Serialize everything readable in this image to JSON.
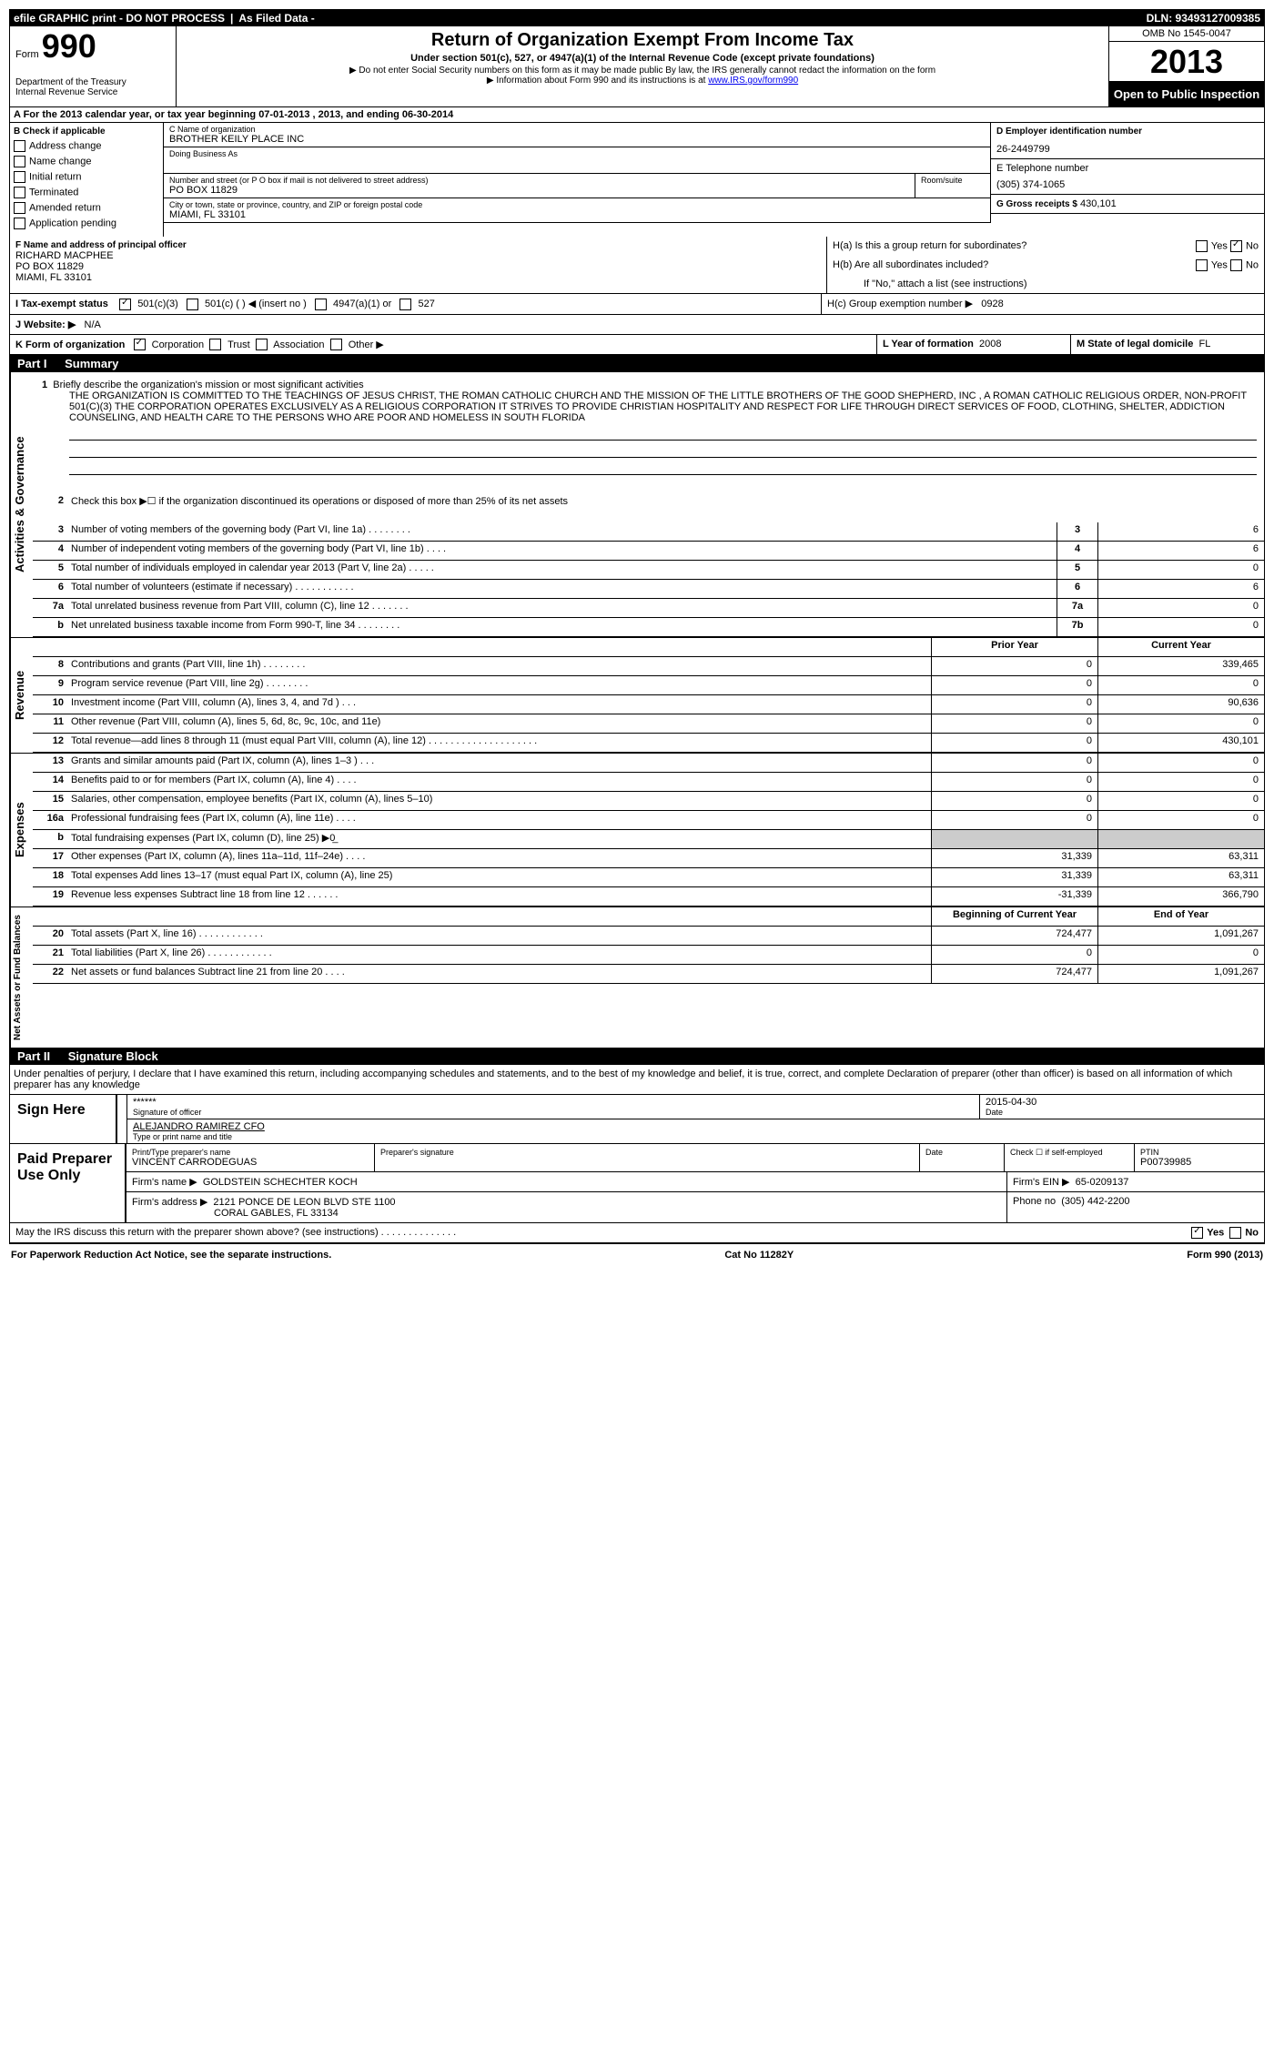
{
  "header_bar": {
    "left": "efile GRAPHIC print - DO NOT PROCESS",
    "mid": "As Filed Data -",
    "right": "DLN: 93493127009385"
  },
  "form": {
    "prefix": "Form",
    "number": "990",
    "dept1": "Department of the Treasury",
    "dept2": "Internal Revenue Service"
  },
  "title": {
    "main": "Return of Organization Exempt From Income Tax",
    "sub1": "Under section 501(c), 527, or 4947(a)(1) of the Internal Revenue Code (except private foundations)",
    "sub2": "▶ Do not enter Social Security numbers on this form as it may be made public  By law, the IRS generally cannot redact the information on the form",
    "sub3": "▶ Information about Form 990 and its instructions is at ",
    "link": "www.IRS.gov/form990"
  },
  "right": {
    "omb": "OMB No  1545-0047",
    "year": "2013",
    "open": "Open to Public Inspection"
  },
  "section_a": "A  For the 2013 calendar year, or tax year beginning 07-01-2013     , 2013, and ending 06-30-2014",
  "check_b": {
    "header": "B  Check if applicable",
    "items": [
      "Address change",
      "Name change",
      "Initial return",
      "Terminated",
      "Amended return",
      "Application pending"
    ]
  },
  "org": {
    "name_label": "C Name of organization",
    "name": "BROTHER KEILY PLACE INC",
    "dba_label": "Doing Business As",
    "addr_label": "Number and street (or P O  box if mail is not delivered to street address)",
    "room_label": "Room/suite",
    "addr": "PO BOX 11829",
    "city_label": "City or town, state or province, country, and ZIP or foreign postal code",
    "city": "MIAMI, FL  33101"
  },
  "d": {
    "label": "D Employer identification number",
    "value": "26-2449799"
  },
  "e": {
    "label": "E Telephone number",
    "value": "(305) 374-1065"
  },
  "g": {
    "label": "G Gross receipts $",
    "value": "430,101"
  },
  "f": {
    "label": "F   Name and address of principal officer",
    "name": "RICHARD MACPHEE",
    "addr1": "PO BOX 11829",
    "addr2": "MIAMI, FL  33101"
  },
  "h": {
    "a": "H(a)  Is this a group return for subordinates?",
    "b": "H(b)  Are all subordinates included?",
    "note": "If \"No,\" attach a list  (see instructions)",
    "c": "H(c)   Group exemption number ▶",
    "c_val": "0928",
    "yes": "Yes",
    "no": "No"
  },
  "i": {
    "label": "I   Tax-exempt status",
    "opt1": "501(c)(3)",
    "opt2": "501(c) (   ) ◀ (insert no )",
    "opt3": "4947(a)(1) or",
    "opt4": "527"
  },
  "j": {
    "label": "J   Website: ▶",
    "value": "N/A"
  },
  "k": {
    "label": "K Form of organization",
    "opts": [
      "Corporation",
      "Trust",
      "Association",
      "Other ▶"
    ]
  },
  "l": {
    "label": "L Year of formation",
    "value": "2008"
  },
  "m": {
    "label": "M State of legal domicile",
    "value": "FL"
  },
  "part1": {
    "label": "Part I",
    "title": "Summary"
  },
  "mission": {
    "num": "1",
    "label": "Briefly describe the organization's mission or most significant activities",
    "text": "THE ORGANIZATION IS COMMITTED TO THE TEACHINGS OF JESUS CHRIST, THE ROMAN CATHOLIC CHURCH AND THE MISSION OF THE LITTLE BROTHERS OF THE GOOD SHEPHERD, INC , A ROMAN CATHOLIC RELIGIOUS ORDER, NON-PROFIT 501(C)(3)  THE CORPORATION OPERATES EXCLUSIVELY AS A RELIGIOUS CORPORATION  IT STRIVES TO PROVIDE CHRISTIAN HOSPITALITY AND RESPECT FOR LIFE THROUGH DIRECT SERVICES OF FOOD, CLOTHING, SHELTER, ADDICTION COUNSELING, AND HEALTH CARE TO THE PERSONS WHO ARE POOR AND HOMELESS IN SOUTH FLORIDA"
  },
  "line2": {
    "num": "2",
    "text": "Check this box ▶☐ if the organization discontinued its operations or disposed of more than 25% of its net assets"
  },
  "gov_lines": [
    {
      "num": "3",
      "text": "Number of voting members of the governing body (Part VI, line 1a)   .    .    .    .    .    .    .    .",
      "ref": "3",
      "val": "6"
    },
    {
      "num": "4",
      "text": "Number of independent voting members of the governing body (Part VI, line 1b)    .    .    .    .",
      "ref": "4",
      "val": "6"
    },
    {
      "num": "5",
      "text": "Total number of individuals employed in calendar year 2013 (Part V, line 2a)    .    .    .    .    .",
      "ref": "5",
      "val": "0"
    },
    {
      "num": "6",
      "text": "Total number of volunteers (estimate if necessary)    .    .    .    .    .    .    .    .    .    .    .",
      "ref": "6",
      "val": "6"
    },
    {
      "num": "7a",
      "text": "Total unrelated business revenue from Part VIII, column (C), line 12    .    .    .    .    .    .    .",
      "ref": "7a",
      "val": "0"
    },
    {
      "num": "b",
      "text": "Net unrelated business taxable income from Form 990-T, line 34   .    .    .    .    .    .    .    .",
      "ref": "7b",
      "val": "0"
    }
  ],
  "col_headers": {
    "prior": "Prior Year",
    "current": "Current Year"
  },
  "revenue_lines": [
    {
      "num": "8",
      "text": "Contributions and grants (Part VIII, line 1h)    .    .    .    .    .    .    .    .",
      "prior": "0",
      "current": "339,465"
    },
    {
      "num": "9",
      "text": "Program service revenue (Part VIII, line 2g)    .    .    .    .    .    .    .    .",
      "prior": "0",
      "current": "0"
    },
    {
      "num": "10",
      "text": "Investment income (Part VIII, column (A), lines 3, 4, and 7d )    .    .    .",
      "prior": "0",
      "current": "90,636"
    },
    {
      "num": "11",
      "text": "Other revenue (Part VIII, column (A), lines 5, 6d, 8c, 9c, 10c, and 11e)",
      "prior": "0",
      "current": "0"
    },
    {
      "num": "12",
      "text": "Total revenue—add lines 8 through 11 (must equal Part VIII, column (A), line 12) .    .    .    .    .    .    .    .    .    .    .    .    .    .    .    .    .    .    .    .",
      "prior": "0",
      "current": "430,101"
    }
  ],
  "expense_lines": [
    {
      "num": "13",
      "text": "Grants and similar amounts paid (Part IX, column (A), lines 1–3 )    .    .    .",
      "prior": "0",
      "current": "0"
    },
    {
      "num": "14",
      "text": "Benefits paid to or for members (Part IX, column (A), line 4)    .    .    .    .",
      "prior": "0",
      "current": "0"
    },
    {
      "num": "15",
      "text": "Salaries, other compensation, employee benefits (Part IX, column (A), lines 5–10)",
      "prior": "0",
      "current": "0"
    },
    {
      "num": "16a",
      "text": "Professional fundraising fees (Part IX, column (A), line 11e)    .    .    .    .",
      "prior": "0",
      "current": "0"
    },
    {
      "num": "b",
      "text": "Total fundraising expenses (Part IX, column (D), line 25) ▶0̲",
      "prior": "",
      "current": "",
      "grey": true
    },
    {
      "num": "17",
      "text": "Other expenses (Part IX, column (A), lines 11a–11d, 11f–24e)    .    .    .    .",
      "prior": "31,339",
      "current": "63,311"
    },
    {
      "num": "18",
      "text": "Total expenses  Add lines 13–17 (must equal Part IX, column (A), line 25)",
      "prior": "31,339",
      "current": "63,311"
    },
    {
      "num": "19",
      "text": "Revenue less expenses  Subtract line 18 from line 12    .    .    .    .    .    .",
      "prior": "-31,339",
      "current": "366,790"
    }
  ],
  "net_headers": {
    "begin": "Beginning of Current Year",
    "end": "End of Year"
  },
  "net_lines": [
    {
      "num": "20",
      "text": "Total assets (Part X, line 16)    .    .    .    .    .    .    .    .    .    .    .    .",
      "prior": "724,477",
      "current": "1,091,267"
    },
    {
      "num": "21",
      "text": "Total liabilities (Part X, line 26)    .    .    .    .    .    .    .    .    .    .    .    .",
      "prior": "0",
      "current": "0"
    },
    {
      "num": "22",
      "text": "Net assets or fund balances  Subtract line 21 from line 20    .    .    .    .",
      "prior": "724,477",
      "current": "1,091,267"
    }
  ],
  "part2": {
    "label": "Part II",
    "title": "Signature Block"
  },
  "perjury": "Under penalties of perjury, I declare that I have examined this return, including accompanying schedules and statements, and to the best of my knowledge and belief, it is true, correct, and complete  Declaration of preparer (other than officer) is based on all information of which preparer has any knowledge",
  "sign": {
    "label": "Sign Here",
    "stars": "******",
    "sig_label": "Signature of officer",
    "date": "2015-04-30",
    "date_label": "Date",
    "name": "ALEJANDRO RAMIREZ CFO",
    "name_label": "Type or print name and title"
  },
  "preparer": {
    "label": "Paid Preparer Use Only",
    "name_label": "Print/Type preparer's name",
    "name": "VINCENT CARRODEGUAS",
    "sig_label": "Preparer's signature",
    "date_label": "Date",
    "check_label": "Check ☐ if self-employed",
    "ptin_label": "PTIN",
    "ptin": "P00739985",
    "firm_label": "Firm's name    ▶",
    "firm": "GOLDSTEIN SCHECHTER KOCH",
    "ein_label": "Firm's EIN ▶",
    "ein": "65-0209137",
    "addr_label": "Firm's address ▶",
    "addr1": "2121 PONCE DE LEON BLVD STE 1100",
    "addr2": "CORAL GABLES, FL  33134",
    "phone_label": "Phone no",
    "phone": "(305) 442-2200"
  },
  "discuss": {
    "text": "May the IRS discuss this return with the preparer shown above? (see instructions)    .    .    .    .    .    .    .    .    .    .    .    .    .    .",
    "yes": "Yes",
    "no": "No"
  },
  "footer": {
    "left": "For Paperwork Reduction Act Notice, see the separate instructions.",
    "mid": "Cat  No  11282Y",
    "right": "Form 990 (2013)"
  },
  "vlabels": {
    "gov": "Activities & Governance",
    "rev": "Revenue",
    "exp": "Expenses",
    "net": "Net Assets or Fund Balances"
  }
}
